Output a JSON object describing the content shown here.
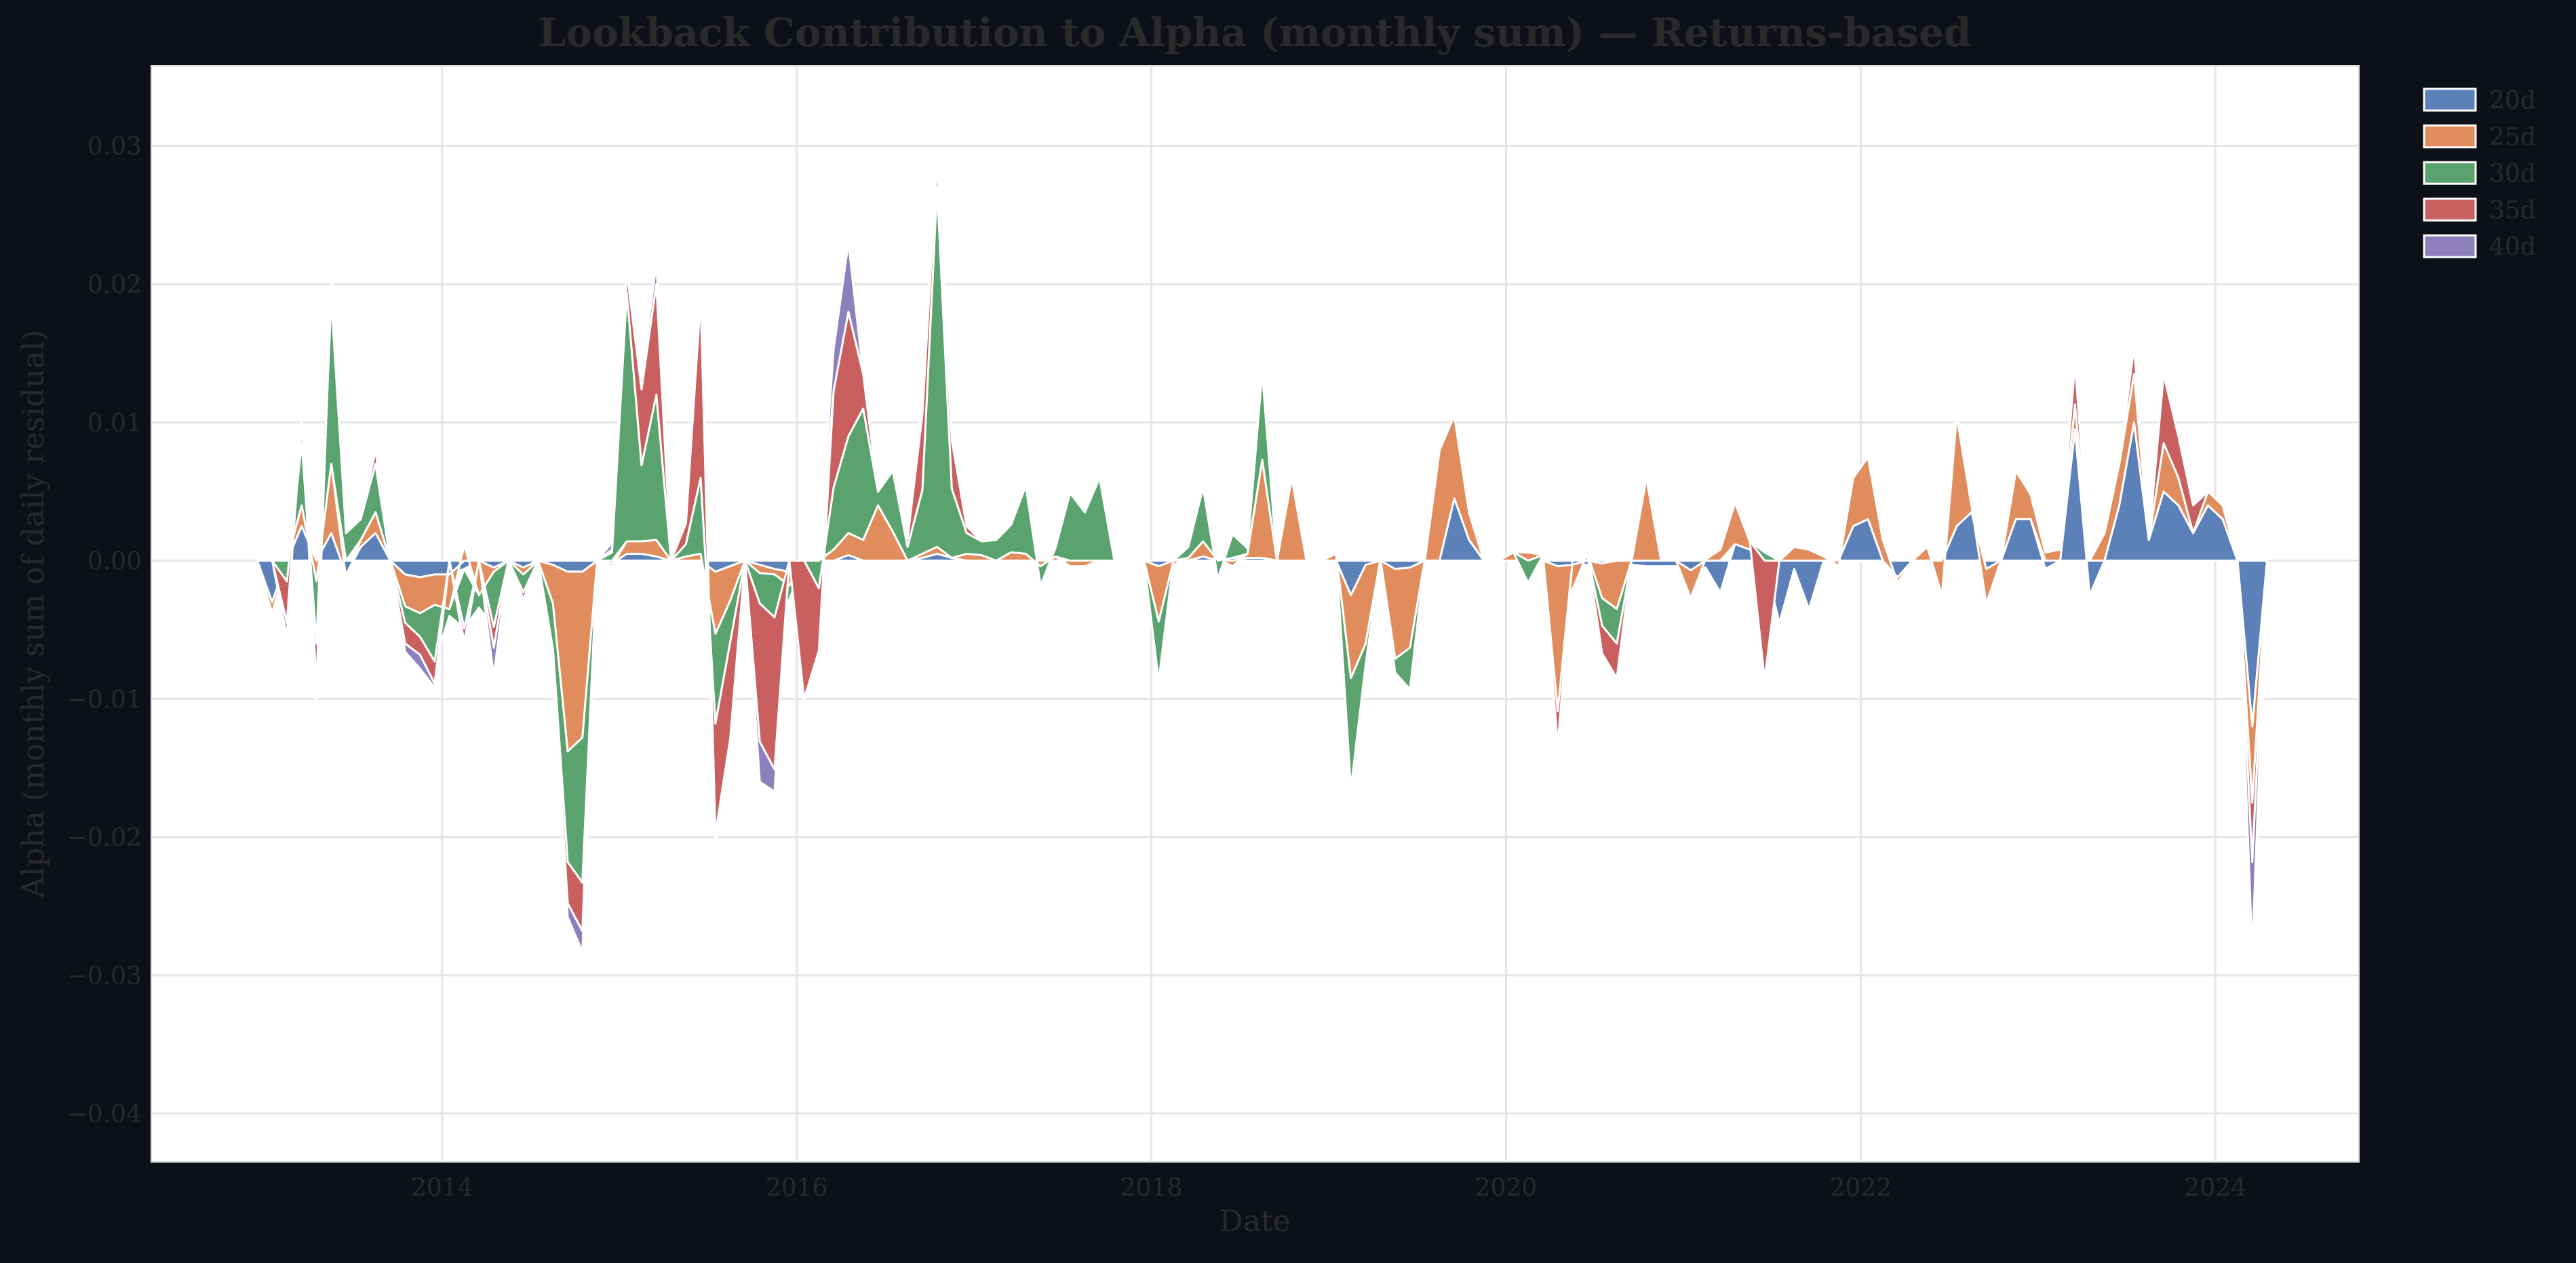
{
  "chart_data": {
    "type": "area",
    "title": "Lookback Contribution to Alpha (monthly sum) — Returns-based",
    "xlabel": "Date",
    "ylabel": "Alpha (monthly sum of daily residual)",
    "xlim": [
      2012.36,
      2024.81
    ],
    "ylim": [
      -0.0435,
      0.0358
    ],
    "x_ticks": [
      {
        "value": 2014,
        "label": "2014"
      },
      {
        "value": 2016,
        "label": "2016"
      },
      {
        "value": 2018,
        "label": "2018"
      },
      {
        "value": 2020,
        "label": "2020"
      },
      {
        "value": 2022,
        "label": "2022"
      },
      {
        "value": 2024,
        "label": "2024"
      }
    ],
    "y_ticks": [
      {
        "value": 0.03,
        "label": "0.03"
      },
      {
        "value": 0.02,
        "label": "0.02"
      },
      {
        "value": 0.01,
        "label": "0.01"
      },
      {
        "value": 0.0,
        "label": "0.00"
      },
      {
        "value": -0.01,
        "label": "−0.01"
      },
      {
        "value": -0.02,
        "label": "−0.02"
      },
      {
        "value": -0.03,
        "label": "−0.03"
      },
      {
        "value": -0.04,
        "label": "−0.04"
      }
    ],
    "grid": true,
    "legend_position": "outside-top-right",
    "colors": {
      "page_background": "#0d1117",
      "plot_background": "#ffffff",
      "grid": "#e5e5e5",
      "text": "#2a2a2a",
      "separator": "#ffffff"
    },
    "x_dates": [
      "2012-12",
      "2013-01",
      "2013-02",
      "2013-03",
      "2013-04",
      "2013-05",
      "2013-06",
      "2013-07",
      "2013-08",
      "2013-09",
      "2013-10",
      "2013-11",
      "2013-12",
      "2014-01",
      "2014-02",
      "2014-03",
      "2014-04",
      "2014-05",
      "2014-06",
      "2014-07",
      "2014-08",
      "2014-09",
      "2014-10",
      "2014-11",
      "2014-12",
      "2015-01",
      "2015-02",
      "2015-03",
      "2015-04",
      "2015-05",
      "2015-06",
      "2015-07",
      "2015-08",
      "2015-09",
      "2015-10",
      "2015-11",
      "2015-12",
      "2016-01",
      "2016-02",
      "2016-03",
      "2016-04",
      "2016-05",
      "2016-06",
      "2016-07",
      "2016-08",
      "2016-09",
      "2016-10",
      "2016-11",
      "2016-12",
      "2017-01",
      "2017-02",
      "2017-03",
      "2017-04",
      "2017-05",
      "2017-06",
      "2017-07",
      "2017-08",
      "2017-09",
      "2017-10",
      "2017-11",
      "2017-12",
      "2018-01",
      "2018-02",
      "2018-03",
      "2018-04",
      "2018-05",
      "2018-06",
      "2018-07",
      "2018-08",
      "2018-09",
      "2018-10",
      "2018-11",
      "2018-12",
      "2019-01",
      "2019-02",
      "2019-03",
      "2019-04",
      "2019-05",
      "2019-06",
      "2019-07",
      "2019-08",
      "2019-09",
      "2019-10",
      "2019-11",
      "2019-12",
      "2020-01",
      "2020-02",
      "2020-03",
      "2020-04",
      "2020-05",
      "2020-06",
      "2020-07",
      "2020-08",
      "2020-09",
      "2020-10",
      "2020-11",
      "2020-12",
      "2021-01",
      "2021-02",
      "2021-03",
      "2021-04",
      "2021-05",
      "2021-06",
      "2021-07",
      "2021-08",
      "2021-09",
      "2021-10",
      "2021-11",
      "2021-12",
      "2022-01",
      "2022-02",
      "2022-03",
      "2022-04",
      "2022-05",
      "2022-06",
      "2022-07",
      "2022-08",
      "2022-09",
      "2022-10",
      "2022-11",
      "2022-12",
      "2023-01",
      "2023-02",
      "2023-03",
      "2023-04",
      "2023-05",
      "2023-06",
      "2023-07",
      "2023-08",
      "2023-09",
      "2023-10",
      "2023-11",
      "2023-12",
      "2024-01",
      "2024-02",
      "2024-03",
      "2024-04"
    ],
    "series": [
      {
        "name": "20d",
        "color": "#5c80b8",
        "values": [
          0,
          -0.003,
          0,
          0.0025,
          0,
          0.002,
          -0.001,
          0.001,
          0.002,
          0,
          -0.001,
          -0.0012,
          -0.001,
          -0.001,
          -0.0006,
          0,
          -0.0005,
          0,
          -0.0005,
          0,
          -0.0003,
          -0.0008,
          -0.0008,
          0,
          -0.0002,
          0.0005,
          0.0005,
          0.0003,
          0,
          0,
          0,
          -0.0008,
          -0.0004,
          0,
          -0.0003,
          -0.0006,
          -0.0008,
          0,
          0,
          0,
          0.0004,
          0,
          0,
          0,
          0,
          0.0002,
          0.0005,
          0.0002,
          0,
          0,
          0,
          0,
          0,
          0,
          0,
          0,
          0,
          0,
          0,
          0,
          0,
          -0.0004,
          0,
          0,
          0.0003,
          0,
          0.0002,
          0.0002,
          0.0002,
          0,
          0,
          0,
          0,
          0,
          -0.0025,
          -0.0003,
          -0.0005,
          -0.0006,
          -0.0005,
          0,
          0,
          0.0045,
          0.0015,
          0,
          0,
          0,
          0,
          0,
          -0.0004,
          -0.0003,
          -0.0003,
          -0.0002,
          0,
          -0.0003,
          -0.0004,
          -0.0004,
          -0.0004,
          -0.0007,
          -0.0005,
          -0.0023,
          0.0012,
          0.0008,
          0,
          -0.0045,
          -0.0006,
          -0.0035,
          0,
          0,
          0.0025,
          0.003,
          0,
          -0.0012,
          0,
          0,
          0,
          0.0025,
          0.0035,
          -0.0006,
          0,
          0.003,
          0.003,
          -0.0006,
          0,
          0.0095,
          -0.0025,
          0,
          0.004,
          0.01,
          0.0015,
          0.005,
          0.004,
          0.002,
          0.004,
          0.003,
          0,
          -0.012,
          0
        ]
      },
      {
        "name": "25d",
        "color": "#e08c5c",
        "values": [
          0,
          -0.0008,
          0,
          0.0015,
          -0.0015,
          0.005,
          -0.0003,
          0.0005,
          0.0015,
          0,
          -0.0023,
          -0.0026,
          -0.0022,
          -0.0025,
          0.0011,
          -0.0025,
          -0.0003,
          0,
          -0.0005,
          0,
          -0.0028,
          -0.013,
          -0.012,
          0,
          -0.0002,
          0.0009,
          0.0009,
          0.0012,
          0,
          0.0003,
          0.0005,
          -0.0045,
          -0.0025,
          0,
          -0.0006,
          -0.0004,
          -0.001,
          0,
          0,
          0.0008,
          0.0016,
          0.0015,
          0.004,
          0.0021,
          0,
          0.0003,
          0.0005,
          0,
          0.0005,
          0.0004,
          0,
          0.0006,
          0.0005,
          -0.0004,
          0.0003,
          -0.0004,
          -0.0004,
          0,
          0,
          0,
          0,
          -0.004,
          -0.0003,
          0.0002,
          0.0011,
          0.0001,
          -0.0004,
          0.0003,
          0.0071,
          0,
          0.006,
          0,
          0,
          0.0005,
          -0.006,
          -0.0057,
          0.0001,
          -0.0065,
          -0.0058,
          0,
          0.008,
          0.006,
          0.002,
          0,
          0,
          0.0006,
          0.0006,
          0.0004,
          -0.0105,
          -0.0018,
          0.0005,
          -0.0025,
          -0.0035,
          0,
          0.006,
          0,
          0,
          -0.002,
          0.0001,
          0.0008,
          0.003,
          0.0006,
          0,
          0,
          0.001,
          0.0008,
          0.0003,
          -0.0004,
          0.0035,
          0.0045,
          0.0015,
          -0.0004,
          0,
          0.001,
          -0.0025,
          0.008,
          0.0005,
          -0.0025,
          0,
          0.0035,
          0.0018,
          0.0006,
          0.0008,
          0.0018,
          0,
          0.002,
          0.003,
          0.0035,
          0,
          0.0035,
          0.002,
          0,
          0.001,
          0.001,
          0,
          -0.0055,
          0
        ]
      },
      {
        "name": "30d",
        "color": "#5aa36e",
        "values": [
          0,
          0,
          -0.0015,
          0.0045,
          -0.0045,
          0.012,
          0.002,
          0.0015,
          0.0035,
          0,
          -0.0012,
          -0.0017,
          -0.0041,
          -0.0005,
          -0.0043,
          -0.0009,
          -0.004,
          0,
          -0.0013,
          0,
          -0.0033,
          -0.008,
          -0.0105,
          0,
          0.0006,
          0.018,
          0.0055,
          0.0105,
          0,
          0.0009,
          0.0055,
          -0.0065,
          -0.003,
          0,
          -0.0022,
          -0.0031,
          -0.001,
          0,
          -0.002,
          0.0045,
          0.007,
          0.0095,
          0.001,
          0.0044,
          0.001,
          0.0046,
          0.026,
          0.005,
          0.0015,
          0.001,
          0.0015,
          0.002,
          0.0049,
          -0.0014,
          0.0006,
          0.0049,
          0.0035,
          0.006,
          0,
          0,
          0,
          -0.0043,
          0,
          0.0008,
          0.0039,
          -0.0013,
          0.0017,
          0.0004,
          0.0064,
          0,
          0,
          0,
          0,
          0,
          -0.008,
          -0.0015,
          0,
          -0.001,
          -0.003,
          0,
          0,
          0,
          0,
          0,
          0,
          0,
          -0.0016,
          0,
          0,
          0,
          0,
          -0.002,
          -0.0025,
          0,
          0,
          0,
          0,
          0,
          0,
          0,
          0,
          0,
          0.0006,
          0,
          0,
          0,
          0,
          0,
          0,
          0,
          0,
          0,
          0,
          0,
          0,
          0,
          0,
          0,
          0,
          0,
          0,
          0,
          0,
          0,
          0,
          0,
          0,
          0,
          0,
          0,
          0,
          0,
          0,
          0,
          0,
          0,
          0
        ]
      },
      {
        "name": "35d",
        "color": "#c95f5f",
        "values": [
          0,
          0,
          -0.003,
          0.0015,
          -0.003,
          0.001,
          0,
          0,
          0.001,
          0,
          -0.0015,
          -0.0013,
          -0.0016,
          0,
          -0.001,
          0,
          -0.0015,
          0,
          -0.0005,
          0,
          -0.001,
          -0.003,
          -0.0035,
          0,
          0.0002,
          0.0015,
          0.0055,
          0.008,
          0,
          0.0015,
          0.013,
          -0.008,
          -0.007,
          0,
          -0.01,
          -0.011,
          0,
          -0.01,
          -0.0045,
          0.007,
          0.009,
          0.0025,
          0,
          0,
          0.0006,
          0.0055,
          0.002,
          0.0035,
          0.0005,
          0,
          0,
          0,
          0,
          0,
          0,
          0,
          0,
          0,
          0,
          0,
          0,
          0,
          0,
          0,
          0,
          0,
          0,
          0,
          0,
          0,
          0,
          0,
          0,
          0,
          0,
          0,
          0,
          0,
          0,
          0,
          0,
          0,
          0,
          0,
          0,
          0,
          0,
          0,
          -0.0025,
          0,
          0,
          -0.002,
          -0.0025,
          0,
          0,
          0,
          0,
          0,
          0,
          0,
          0,
          0,
          -0.0086,
          0,
          0,
          0,
          0,
          0,
          0,
          0,
          0,
          0,
          0,
          0,
          0,
          0,
          0,
          0,
          0,
          0,
          0,
          0,
          0,
          0.003,
          0,
          0,
          0,
          0.002,
          0,
          0.005,
          0.003,
          0.002,
          0,
          0,
          0,
          -0.0043,
          0
        ]
      },
      {
        "name": "40d",
        "color": "#8e7fbd",
        "values": [
          0,
          0,
          -0.001,
          0.001,
          -0.001,
          0.001,
          0,
          0,
          0,
          0,
          -0.0006,
          -0.001,
          -0.0003,
          0,
          -0.0003,
          0,
          -0.002,
          0,
          -0.0002,
          0,
          -0.0005,
          -0.001,
          -0.0015,
          0,
          0.0005,
          0.0005,
          0.0008,
          0.0015,
          0,
          0,
          0,
          -0.0006,
          -0.0005,
          0,
          -0.0029,
          -0.0016,
          0,
          0,
          0,
          0.003,
          0.005,
          0,
          0,
          0,
          0,
          0.001,
          0,
          0,
          0,
          0,
          0,
          0,
          0,
          0,
          0,
          0,
          0,
          0,
          0,
          0,
          0,
          0,
          0,
          0,
          0,
          0,
          0,
          0,
          0,
          0,
          0,
          0,
          0,
          0,
          0,
          0,
          0,
          0,
          0,
          0,
          0,
          0,
          0,
          0,
          0,
          0,
          0,
          0,
          0,
          0,
          0,
          0,
          0,
          0,
          0,
          0,
          0,
          0,
          0,
          0,
          0,
          0,
          0,
          0,
          0,
          0,
          0,
          0,
          0,
          0,
          0,
          0,
          0,
          0,
          0,
          0,
          0,
          0,
          0,
          0,
          0,
          0,
          0,
          0,
          0,
          0,
          0,
          0,
          0,
          0,
          0,
          0,
          0,
          0,
          0,
          -0.0065,
          0
        ]
      }
    ]
  }
}
